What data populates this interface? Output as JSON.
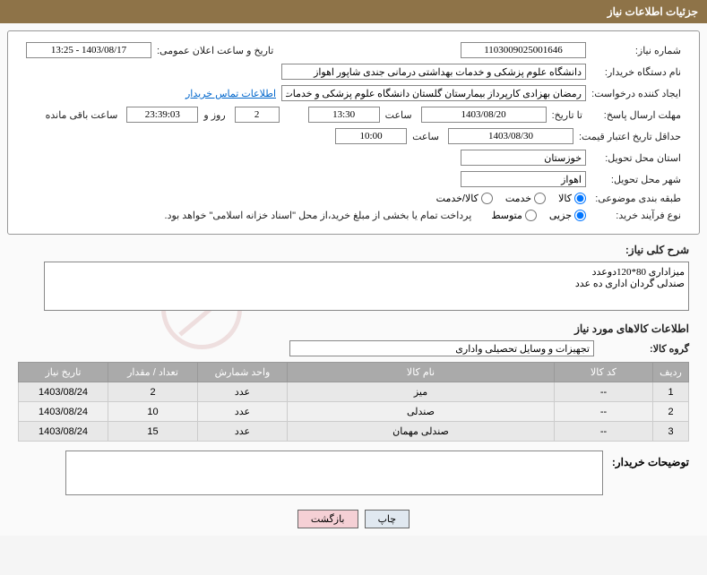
{
  "header": {
    "title": "جزئیات اطلاعات نیاز"
  },
  "fields": {
    "need_number_label": "شماره نیاز:",
    "need_number": "1103009025001646",
    "announce_datetime_label": "تاریخ و ساعت اعلان عمومی:",
    "announce_datetime": "1403/08/17 - 13:25",
    "buyer_org_label": "نام دستگاه خریدار:",
    "buyer_org": "دانشگاه علوم پزشکی و خدمات بهداشتی درمانی جندی شاپور اهواز",
    "requester_label": "ایجاد کننده درخواست:",
    "requester": "رمضان بهزادی کارپرداز بیمارستان گلستان دانشگاه علوم پزشکی و خدمات بهداش",
    "contact_link": "اطلاعات تماس خریدار",
    "response_deadline_label": "مهلت ارسال پاسخ:",
    "ta_label": "تا تاریخ:",
    "response_date": "1403/08/20",
    "time_label": "ساعت",
    "response_time": "13:30",
    "days_count": "2",
    "days_and": "روز و",
    "countdown": "23:39:03",
    "remain_label": "ساعت باقی مانده",
    "price_validity_label": "حداقل تاریخ اعتبار قیمت:",
    "price_date": "1403/08/30",
    "price_time": "10:00",
    "province_label": "استان محل تحویل:",
    "province": "خوزستان",
    "city_label": "شهر محل تحویل:",
    "city": "اهواز",
    "category_label": "طبقه بندی موضوعی:",
    "cat_goods": "کالا",
    "cat_service": "خدمت",
    "cat_both": "کالا/خدمت",
    "purchase_type_label": "نوع فرآیند خرید:",
    "pt_minor": "جزیی",
    "pt_medium": "متوسط",
    "payment_note": "پرداخت تمام یا بخشی از مبلغ خرید،از محل \"اسناد خزانه اسلامی\" خواهد بود."
  },
  "desc": {
    "label": "شرح کلی نیاز:",
    "text": "میزاداری 80*120دوعدد\nصندلی گردان اداری ده عدد"
  },
  "goods_section": {
    "title": "اطلاعات کالاهای مورد نیاز"
  },
  "goods_group": {
    "label": "گروه کالا:",
    "value": "تجهیزات و وسایل تحصیلی واداری"
  },
  "table": {
    "headers": {
      "row": "ردیف",
      "code": "کد کالا",
      "name": "نام کالا",
      "unit": "واحد شمارش",
      "qty": "تعداد / مقدار",
      "date": "تاریخ نیاز"
    },
    "rows": [
      {
        "num": "1",
        "code": "--",
        "name": "میز",
        "unit": "عدد",
        "qty": "2",
        "date": "1403/08/24"
      },
      {
        "num": "2",
        "code": "--",
        "name": "صندلی",
        "unit": "عدد",
        "qty": "10",
        "date": "1403/08/24"
      },
      {
        "num": "3",
        "code": "--",
        "name": "صندلی مهمان",
        "unit": "عدد",
        "qty": "15",
        "date": "1403/08/24"
      }
    ]
  },
  "buyer_note": {
    "label": "توضیحات خریدار:"
  },
  "buttons": {
    "print": "چاپ",
    "back": "بازگشت"
  },
  "colors": {
    "header_bg": "#8e7348",
    "header_text": "#ffffff",
    "th_bg": "#aaaaaa",
    "link": "#0066cc",
    "btn_back_bg": "#f5d0d5",
    "btn_print_bg": "#e0e8f0"
  }
}
